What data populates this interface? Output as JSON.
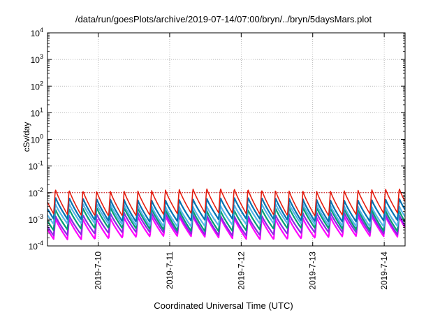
{
  "chart_data": {
    "type": "line",
    "title": "/data/run/goesPlots/archive/2019-07-14/07:00/bryn/../bryn/5daysMars.plot",
    "xlabel": "Coordinated Universal Time (UTC)",
    "ylabel": "cSv/day",
    "x_range": [
      "2019-07-09T07:00",
      "2019-07-14T07:00"
    ],
    "ylim": [
      0.0001,
      10000
    ],
    "yscale": "log",
    "grid": true,
    "y_ticks": [
      {
        "value": 0.0001,
        "base": "10",
        "exp": "-4"
      },
      {
        "value": 0.001,
        "base": "10",
        "exp": "-3"
      },
      {
        "value": 0.01,
        "base": "10",
        "exp": "-2"
      },
      {
        "value": 0.1,
        "base": "10",
        "exp": "-1"
      },
      {
        "value": 1,
        "base": "10",
        "exp": "0"
      },
      {
        "value": 10,
        "base": "10",
        "exp": "1"
      },
      {
        "value": 100,
        "base": "10",
        "exp": "2"
      },
      {
        "value": 1000,
        "base": "10",
        "exp": "3"
      },
      {
        "value": 10000,
        "base": "10",
        "exp": "4"
      }
    ],
    "x_ticks": [
      {
        "value": "2019-07-10T00:00",
        "label": "2019-7-10"
      },
      {
        "value": "2019-07-11T00:00",
        "label": "2019-7-11"
      },
      {
        "value": "2019-07-12T00:00",
        "label": "2019-7-12"
      },
      {
        "value": "2019-07-13T00:00",
        "label": "2019-7-13"
      },
      {
        "value": "2019-07-14T00:00",
        "label": "2019-7-14"
      }
    ],
    "cycles_per_day": 5.2,
    "series": [
      {
        "color": "#ff00ff",
        "peak": 0.0012,
        "trough": 0.0002
      },
      {
        "color": "#8a2be2",
        "peak": 0.0016,
        "trough": 0.00028
      },
      {
        "color": "#009e73",
        "peak": 0.0025,
        "trough": 0.0004
      },
      {
        "color": "#56b4e9",
        "peak": 0.0035,
        "trough": 0.0006
      },
      {
        "color": "#0072b2",
        "peak": 0.006,
        "trough": 0.0009
      },
      {
        "color": "#e51e10",
        "peak": 0.013,
        "trough": 0.0015
      }
    ],
    "threshold": {
      "value": 0.01,
      "color": "#cc0000",
      "style": "dotted"
    }
  }
}
